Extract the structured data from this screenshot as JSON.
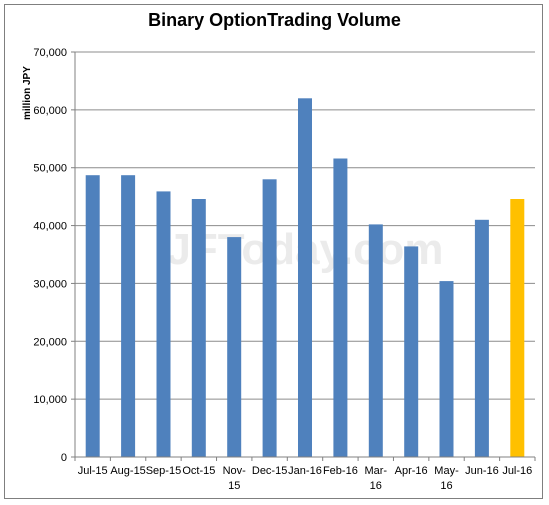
{
  "chart_data": {
    "type": "bar",
    "title": "Binary OptionTrading Volume",
    "ylabel": "million JPY",
    "xlabel": "",
    "ylim": [
      0,
      70000
    ],
    "yticks": [
      "0",
      "10,000",
      "20,000",
      "30,000",
      "40,000",
      "50,000",
      "60,000",
      "70,000"
    ],
    "ytick_values": [
      0,
      10000,
      20000,
      30000,
      40000,
      50000,
      60000,
      70000
    ],
    "categories": [
      "Jul-15",
      "Aug-15",
      "Sep-15",
      "Oct-15",
      "Nov-15",
      "Dec-15",
      "Jan-16",
      "Feb-16",
      "Mar-16",
      "Apr-16",
      "May-16",
      "Jun-16",
      "Jul-16"
    ],
    "category_lines": [
      [
        "Jul-15"
      ],
      [
        "Aug-15"
      ],
      [
        "Sep-15"
      ],
      [
        "Oct-15"
      ],
      [
        "Nov-",
        "15"
      ],
      [
        "Dec-15"
      ],
      [
        "Jan-16"
      ],
      [
        "Feb-16"
      ],
      [
        "Mar-",
        "16"
      ],
      [
        "Apr-16"
      ],
      [
        "May-",
        "16"
      ],
      [
        "Jun-16"
      ],
      [
        "Jul-16"
      ]
    ],
    "values": [
      48700,
      48700,
      45900,
      44600,
      38000,
      48000,
      62000,
      51600,
      40200,
      36400,
      30400,
      41000,
      44600
    ],
    "bar_color": "#4f81bd",
    "highlight_color": "#ffc000",
    "highlight_index": 12,
    "gridlines": true,
    "grid_color": "#8c8c8c",
    "watermark": "JFToday.com"
  }
}
